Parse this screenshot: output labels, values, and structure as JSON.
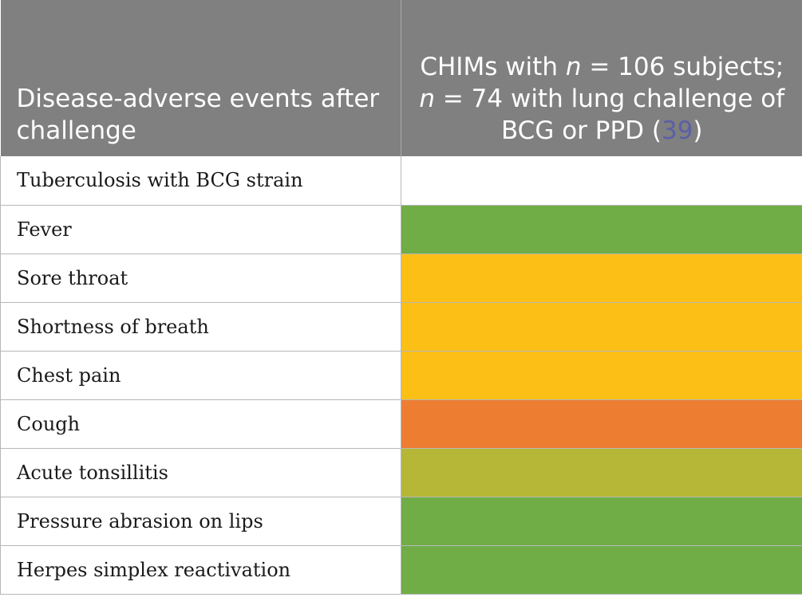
{
  "header": {
    "left_title": "Disease-adverse events after challenge",
    "right_prefix": "CHIMs with ",
    "right_n1_var": "n",
    "right_n1_eq": " = 106 subjects; ",
    "right_n2_var": "n",
    "right_n2_rest": " = 74 with lung challenge of BCG or PPD (",
    "right_ref": "39",
    "right_close": ")"
  },
  "rows": [
    {
      "label": "Tuberculosis with BCG strain",
      "color": "#ffffff"
    },
    {
      "label": "Fever",
      "color": "#70ad47"
    },
    {
      "label": "Sore throat",
      "color": "#fcbf16"
    },
    {
      "label": "Shortness of breath",
      "color": "#fcbf16"
    },
    {
      "label": "Chest pain",
      "color": "#fcbf16"
    },
    {
      "label": "Cough",
      "color": "#ed7d31"
    },
    {
      "label": "Acute tonsillitis",
      "color": "#b6b737"
    },
    {
      "label": "Pressure abrasion on lips",
      "color": "#70ad47"
    },
    {
      "label": "Herpes simplex reactivation",
      "color": "#70ad47"
    }
  ]
}
